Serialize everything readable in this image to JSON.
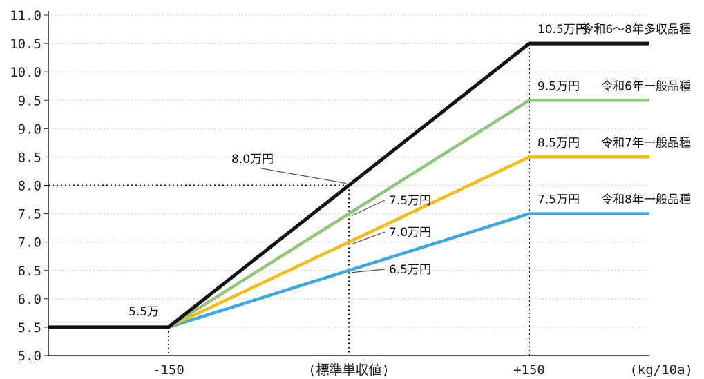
{
  "chart_data": {
    "type": "line",
    "title": "",
    "xlabel": "(kg/10a)",
    "ylabel": "",
    "ylim": [
      5.0,
      11.0
    ],
    "yticks": [
      "5.0",
      "5.5",
      "6.0",
      "6.5",
      "7.0",
      "7.5",
      "8.0",
      "8.5",
      "9.0",
      "9.5",
      "10.0",
      "10.5",
      "11.0"
    ],
    "xlim": [
      -250,
      250
    ],
    "xticks": [
      {
        "value": -150,
        "label": "-150"
      },
      {
        "value": 0,
        "label": "(標準単収値)"
      },
      {
        "value": 150,
        "label": "+150"
      }
    ],
    "grid": true,
    "series": [
      {
        "name": "令和6～8年多収品種",
        "color": "#111111",
        "end_label": "10.5万円",
        "points": [
          [
            -250,
            5.5
          ],
          [
            -150,
            5.5
          ],
          [
            150,
            10.5
          ],
          [
            250,
            10.5
          ]
        ]
      },
      {
        "name": "令和6年一般品種",
        "color": "#92c47a",
        "end_label": "9.5万円",
        "points": [
          [
            -250,
            5.5
          ],
          [
            -150,
            5.5
          ],
          [
            150,
            9.5
          ],
          [
            250,
            9.5
          ]
        ]
      },
      {
        "name": "令和7年一般品種",
        "color": "#f5bb1a",
        "end_label": "8.5万円",
        "points": [
          [
            -250,
            5.5
          ],
          [
            -150,
            5.5
          ],
          [
            150,
            8.5
          ],
          [
            250,
            8.5
          ]
        ]
      },
      {
        "name": "令和8年一般品種",
        "color": "#3ea7de",
        "end_label": "7.5万円",
        "points": [
          [
            -250,
            5.5
          ],
          [
            -150,
            5.5
          ],
          [
            150,
            7.5
          ],
          [
            250,
            7.5
          ]
        ]
      }
    ],
    "annotations": [
      {
        "text": "5.5万",
        "x": -150,
        "y": 5.5
      },
      {
        "text": "8.0万円",
        "x": 0,
        "y": 8.0
      },
      {
        "text": "7.5万円",
        "x": 0,
        "y": 7.5
      },
      {
        "text": "7.0万円",
        "x": 0,
        "y": 7.0
      },
      {
        "text": "6.5万円",
        "x": 0,
        "y": 6.5
      }
    ]
  }
}
